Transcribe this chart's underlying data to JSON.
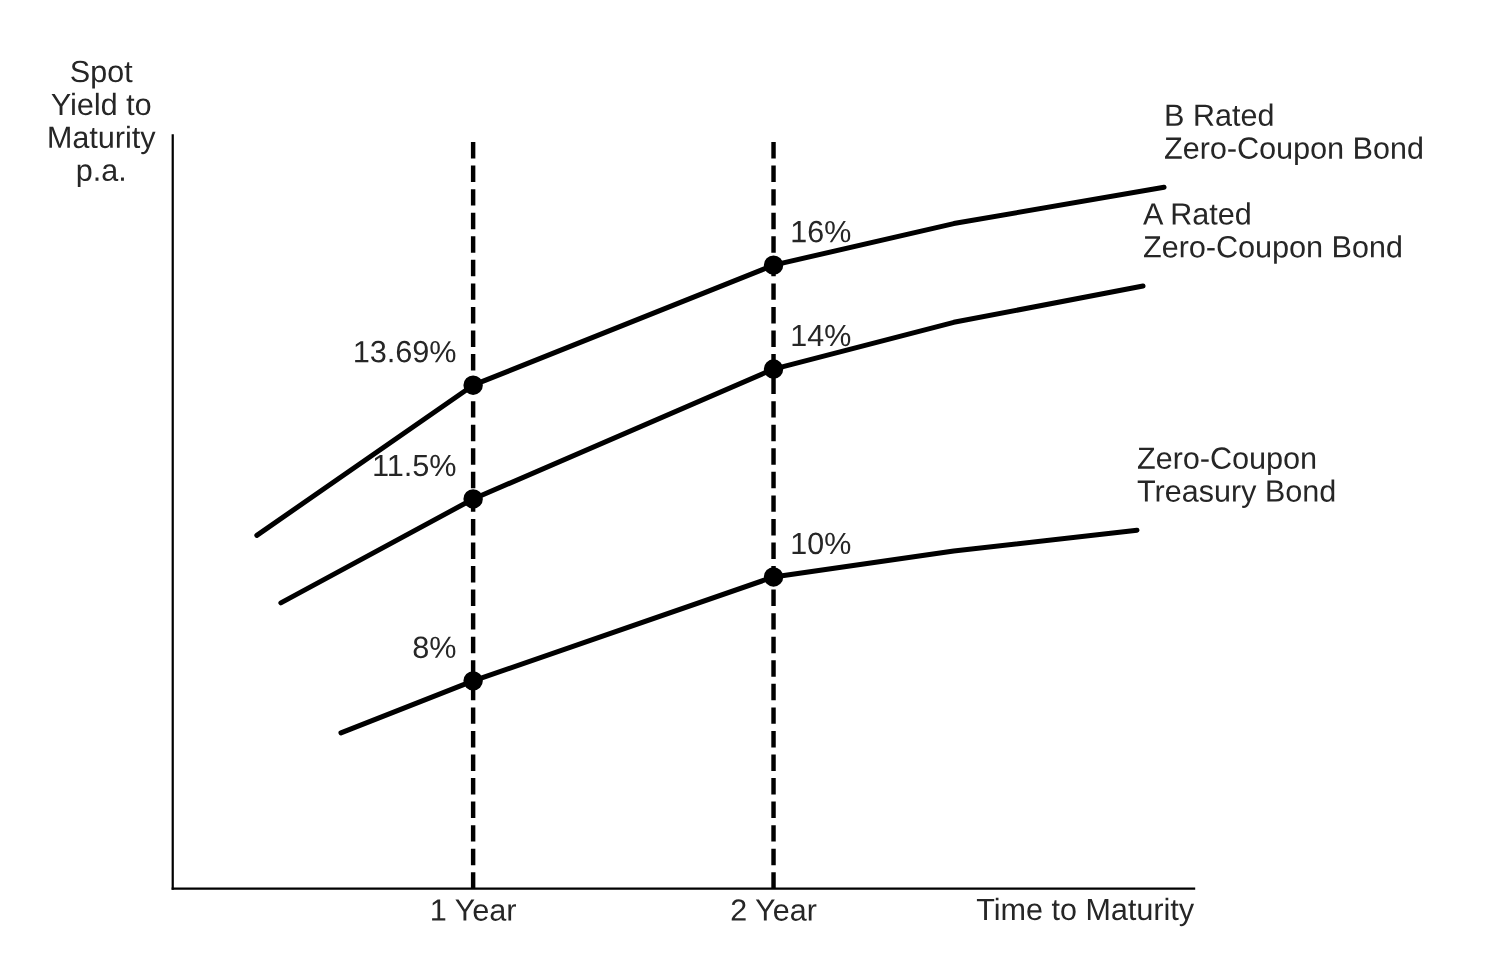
{
  "chart_data": {
    "type": "line",
    "xlabel": "Time to Maturity",
    "ylabel": "Spot\nYield to\nMaturity\np.a.",
    "xlim": [
      0,
      3.4
    ],
    "xticks": [
      {
        "value": 1,
        "label": "1 Year"
      },
      {
        "value": 2,
        "label": "2 Year"
      }
    ],
    "ylim": [
      4,
      18.5
    ],
    "tick_labels": "x",
    "grid": false,
    "legend": false,
    "marker": "none",
    "line_style": "solid",
    "series": [
      {
        "name": "B Rated\nZero-Coupon Bond",
        "color": "#000000",
        "x": [
          0.28,
          1,
          2,
          2.6,
          3.3
        ],
        "values": [
          10.8,
          13.69,
          16,
          16.8,
          17.5
        ]
      },
      {
        "name": "A Rated\nZero-Coupon Bond",
        "color": "#000000",
        "x": [
          0.36,
          1,
          2,
          2.6,
          3.23
        ],
        "values": [
          9.5,
          11.5,
          14,
          14.9,
          15.6
        ]
      },
      {
        "name": "Zero-Coupon\nTreasury Bond",
        "color": "#000000",
        "x": [
          0.56,
          1,
          2,
          2.6,
          3.21
        ],
        "values": [
          7,
          8,
          10,
          10.5,
          10.9
        ]
      },
      {
        "type": "scatter",
        "marker": "circle",
        "color": "#000000",
        "x": [
          1,
          2
        ],
        "values": [
          13.69,
          16
        ],
        "value_labels": [
          "13.69%",
          "16%"
        ]
      },
      {
        "type": "scatter",
        "marker": "circle",
        "color": "#000000",
        "x": [
          1,
          2
        ],
        "values": [
          11.5,
          14
        ],
        "value_labels": [
          "11.5%",
          "14%"
        ]
      },
      {
        "type": "scatter",
        "marker": "circle",
        "color": "#000000",
        "x": [
          1,
          2
        ],
        "values": [
          8,
          10
        ],
        "value_labels": [
          "8%",
          "10%"
        ]
      }
    ],
    "ref_lines": [
      {
        "axis": "x",
        "value": 1,
        "color": "#000000",
        "line_style": "dashed"
      },
      {
        "axis": "x",
        "value": 2,
        "color": "#000000",
        "line_style": "dashed"
      }
    ]
  }
}
